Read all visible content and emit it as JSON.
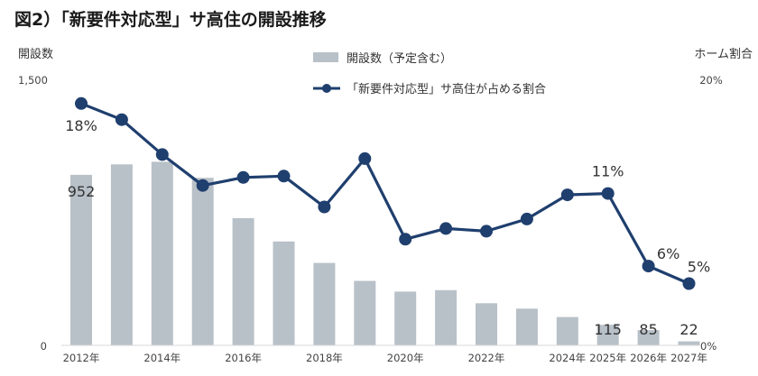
{
  "chart_data": {
    "type": "bar+line",
    "title": "図2）「新要件対応型」サ高住の開設推移",
    "left_axis": {
      "title": "開設数",
      "ylim": [
        0,
        1500
      ],
      "ticks": [
        "1,500",
        "0"
      ]
    },
    "right_axis": {
      "title": "ホーム割合",
      "ylim": [
        0,
        20
      ],
      "ticks": [
        "20%",
        "0%"
      ]
    },
    "x": [
      "2012",
      "2013",
      "2014",
      "2015",
      "2016",
      "2017",
      "2018",
      "2019",
      "2020",
      "2021",
      "2022",
      "2023",
      "2024",
      "2025",
      "2026",
      "2027"
    ],
    "x_tick_labels": [
      "2012年",
      "",
      "2014年",
      "",
      "2016年",
      "",
      "2018年",
      "",
      "2020年",
      "",
      "2022年",
      "",
      "2024年",
      "2025年",
      "2026年",
      "2027年"
    ],
    "legend": {
      "position": "top-center"
    },
    "series": [
      {
        "name": "開設数（予定含む）",
        "kind": "bar",
        "color": "#b8c0c8",
        "values": [
          952,
          1010,
          1025,
          935,
          710,
          580,
          460,
          360,
          300,
          308,
          235,
          205,
          158,
          115,
          85,
          22
        ],
        "data_labels": [
          "952",
          "",
          "",
          "",
          "",
          "",
          "",
          "",
          "",
          "",
          "",
          "",
          "",
          "115",
          "85",
          "22"
        ]
      },
      {
        "name": "「新要件対応型」サ高住が占める割合",
        "kind": "line",
        "axis": "right",
        "color": "#1f3f6e",
        "values": [
          18.0,
          16.8,
          14.2,
          11.9,
          12.5,
          12.6,
          10.3,
          13.9,
          7.9,
          8.7,
          8.5,
          9.4,
          11.2,
          11.3,
          5.9,
          4.6
        ],
        "data_labels": [
          "18%",
          "",
          "",
          "",
          "",
          "",
          "",
          "",
          "",
          "",
          "",
          "",
          "",
          "11%",
          "6%",
          "5%"
        ]
      }
    ]
  }
}
